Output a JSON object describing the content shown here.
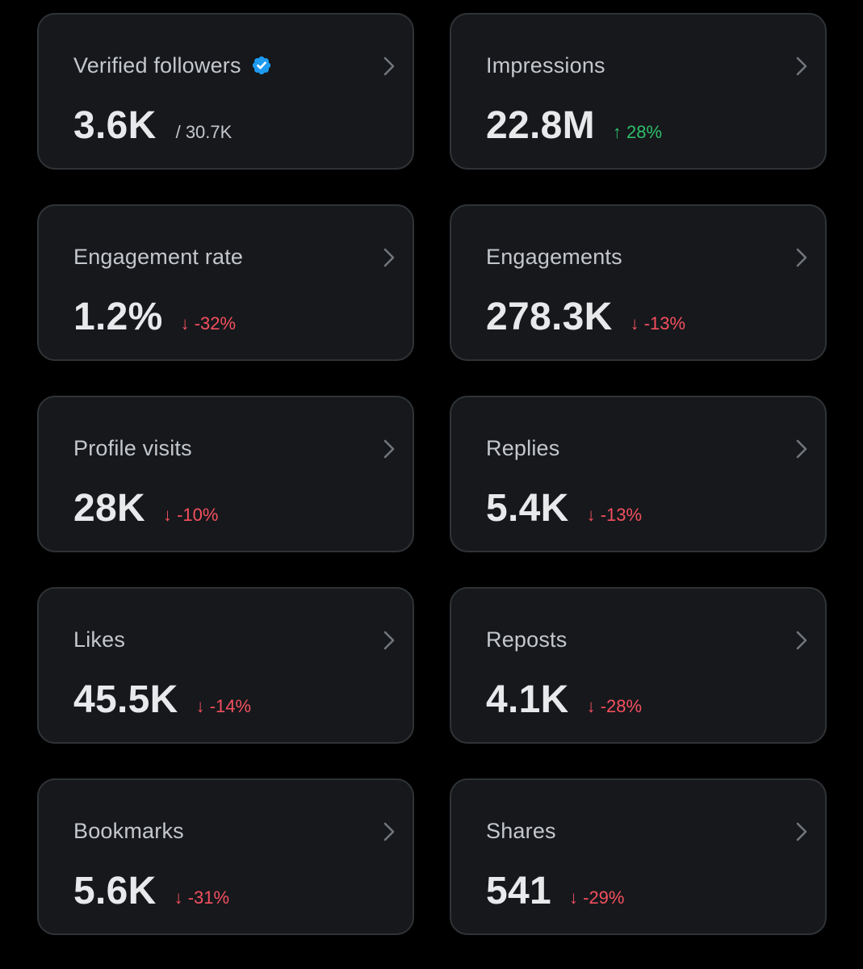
{
  "colors": {
    "background": "#000000",
    "card": "#16181c",
    "card_border": "#2f3336",
    "positive": "#2fbe6a",
    "negative": "#f4505e",
    "verified_badge": "#1d9bf0"
  },
  "cards": [
    {
      "label": "Verified followers",
      "verified_icon": "verified-badge-icon",
      "value": "3.6K",
      "sub": "/ 30.7K"
    },
    {
      "label": "Impressions",
      "value": "22.8M",
      "change": "↑ 28%",
      "direction": "up"
    },
    {
      "label": "Engagement rate",
      "value": "1.2%",
      "change": "↓ -32%",
      "direction": "down"
    },
    {
      "label": "Engagements",
      "value": "278.3K",
      "change": "↓ -13%",
      "direction": "down"
    },
    {
      "label": "Profile visits",
      "value": "28K",
      "change": "↓ -10%",
      "direction": "down"
    },
    {
      "label": "Replies",
      "value": "5.4K",
      "change": "↓ -13%",
      "direction": "down"
    },
    {
      "label": "Likes",
      "value": "45.5K",
      "change": "↓ -14%",
      "direction": "down"
    },
    {
      "label": "Reposts",
      "value": "4.1K",
      "change": "↓ -28%",
      "direction": "down"
    },
    {
      "label": "Bookmarks",
      "value": "5.6K",
      "change": "↓ -31%",
      "direction": "down"
    },
    {
      "label": "Shares",
      "value": "541",
      "change": "↓ -29%",
      "direction": "down"
    }
  ]
}
